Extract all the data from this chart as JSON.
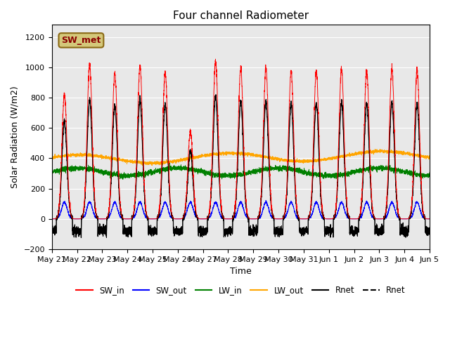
{
  "title": "Four channel Radiometer",
  "xlabel": "Time",
  "ylabel": "Solar Radiation (W/m2)",
  "ylim": [
    -200,
    1280
  ],
  "yticks": [
    -200,
    0,
    200,
    400,
    600,
    800,
    1000,
    1200
  ],
  "plot_bg_color": "#e8e8e8",
  "annotation_text": "SW_met",
  "annotation_color": "#8B0000",
  "annotation_bg": "#d4c87a",
  "annotation_edge": "#8B6914",
  "x_tick_labels": [
    "May 21",
    "May 22",
    "May 23",
    "May 24",
    "May 25",
    "May 26",
    "May 27",
    "May 28",
    "May 29",
    "May 30",
    "May 31",
    "Jun 1",
    "Jun 2",
    "Jun 3",
    "Jun 4",
    "Jun 5"
  ],
  "legend_labels": [
    "SW_in",
    "SW_out",
    "LW_in",
    "LW_out",
    "Rnet",
    "Rnet"
  ],
  "legend_colors": [
    "red",
    "blue",
    "green",
    "orange",
    "black",
    "black"
  ],
  "n_days": 15,
  "pts_per_day": 288,
  "sw_in_peaks": [
    820,
    1010,
    960,
    1010,
    970,
    575,
    1040,
    995,
    990,
    975,
    975,
    985,
    975,
    985,
    975
  ],
  "sw_in_sigma": 0.1,
  "sw_out_peak": 110,
  "sw_out_sigma": 0.11,
  "lw_in_base": 310,
  "lw_in_amp": 25,
  "lw_in_period": 4,
  "lw_out_base": 390,
  "lw_out_amp": 30,
  "lw_out_period": 6,
  "rnet_sigma": 0.1,
  "rnet_night": -80,
  "rnet_night_noise": 15,
  "seed": 42,
  "line_width": 0.7,
  "figsize": [
    6.4,
    4.8
  ],
  "dpi": 100
}
